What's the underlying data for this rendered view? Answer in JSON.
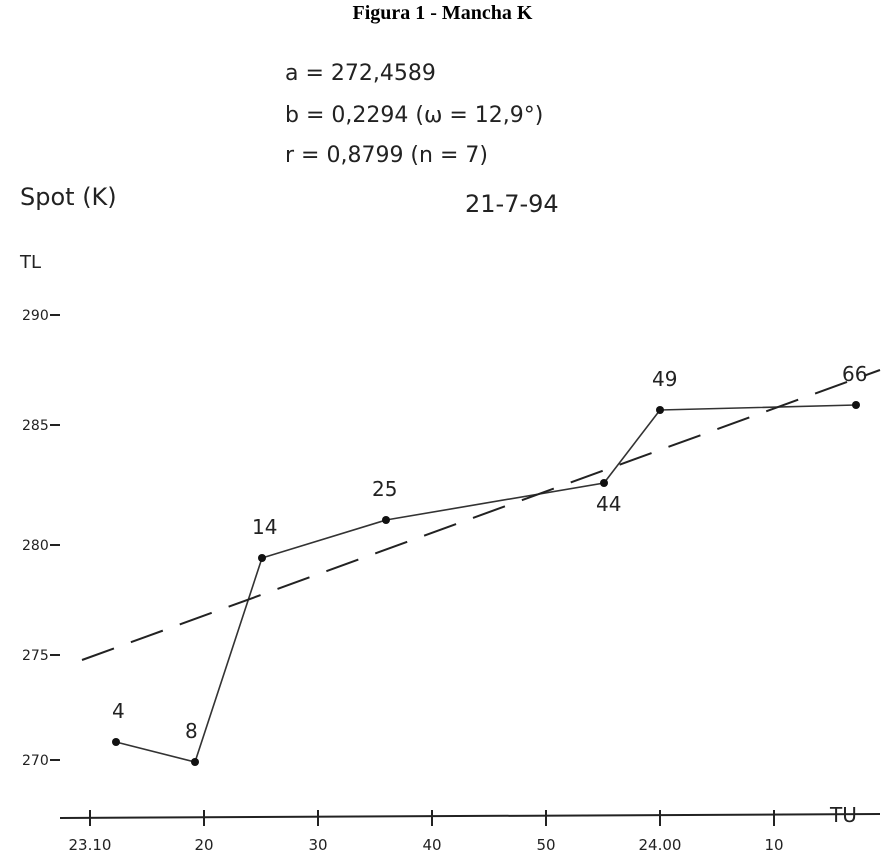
{
  "figure_title": "Figura 1 - Mancha K",
  "chart_data": {
    "type": "line",
    "title": "Spot (K)",
    "date": "21-7-94",
    "ylabel": "TL",
    "xlabel": "TU",
    "fit_stats": {
      "a": "a = 272,4589",
      "b": "b = 0,2294 (ω = 12,9°)",
      "r": "r = 0,8799 (n = 7)"
    },
    "x_tick_labels": [
      "23.10",
      "20",
      "30",
      "40",
      "50",
      "24.00",
      "10"
    ],
    "y_tick_labels": [
      "270",
      "275",
      "280",
      "285",
      "290"
    ],
    "ylim": [
      268,
      293
    ],
    "series": [
      {
        "style": "solid",
        "points": [
          {
            "x": 13.0,
            "y": 271.2,
            "label": "4"
          },
          {
            "x": 19.0,
            "y": 270.5,
            "label": "8"
          },
          {
            "x": 25.0,
            "y": 279.3,
            "label": "14"
          },
          {
            "x": 36.0,
            "y": 281.0,
            "label": "25"
          },
          {
            "x": 55.0,
            "y": 282.4,
            "label": "44"
          },
          {
            "x": 60.0,
            "y": 285.7,
            "label": "49"
          },
          {
            "x": 77.0,
            "y": 285.7,
            "label": "66"
          }
        ]
      },
      {
        "style": "dashed",
        "points": [
          {
            "x": 0.0,
            "y": 275.0
          },
          {
            "x": 80.0,
            "y": 287.0
          }
        ]
      }
    ]
  }
}
